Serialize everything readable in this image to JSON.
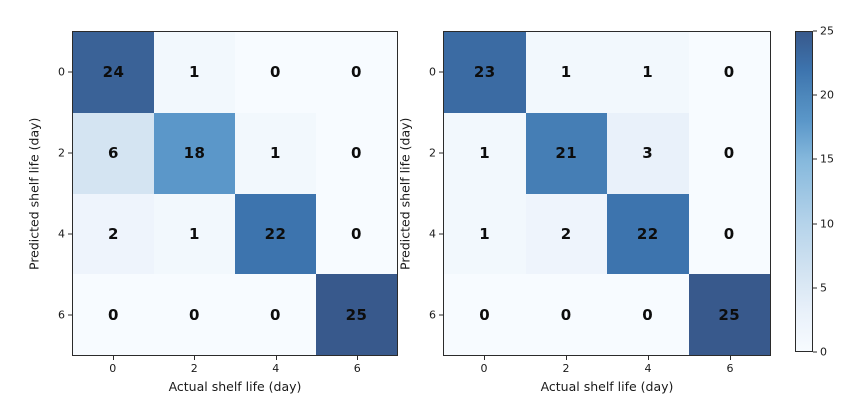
{
  "figure": {
    "background": "#ffffff",
    "spine_color": "#2b2b2b",
    "text_color": "#1a1a1a",
    "annotation_color": "#0d0d0d",
    "colormap": {
      "name": "Blues",
      "vmin": 0,
      "vmax": 25,
      "stops": [
        {
          "v": 0,
          "color": "#f7fbff"
        },
        {
          "v": 3,
          "color": "#e9f1fa"
        },
        {
          "v": 6,
          "color": "#d4e4f2"
        },
        {
          "v": 10,
          "color": "#b5d3ea"
        },
        {
          "v": 15,
          "color": "#85b8dc"
        },
        {
          "v": 18,
          "color": "#5b97c9"
        },
        {
          "v": 20,
          "color": "#4d87bb"
        },
        {
          "v": 22,
          "color": "#3d74ae"
        },
        {
          "v": 25,
          "color": "#38598c"
        }
      ]
    }
  },
  "chart_data": [
    {
      "type": "heatmap",
      "name": "confusion-matrix-left",
      "title": "",
      "xlabel": "Actual shelf life (day)",
      "ylabel": "Predicted shelf life (day)",
      "x_tick_labels": [
        "0",
        "2",
        "4",
        "6"
      ],
      "y_tick_labels": [
        "0",
        "2",
        "4",
        "6"
      ],
      "rows": [
        [
          24,
          1,
          0,
          0
        ],
        [
          6,
          18,
          1,
          0
        ],
        [
          2,
          1,
          22,
          0
        ],
        [
          0,
          0,
          0,
          25
        ]
      ],
      "vmin": 0,
      "vmax": 25,
      "grid": false,
      "annotations": "cell values shown in bold black"
    },
    {
      "type": "heatmap",
      "name": "confusion-matrix-right",
      "title": "",
      "xlabel": "Actual shelf life (day)",
      "ylabel": "Predicted shelf life (day)",
      "x_tick_labels": [
        "0",
        "2",
        "4",
        "6"
      ],
      "y_tick_labels": [
        "0",
        "2",
        "4",
        "6"
      ],
      "rows": [
        [
          23,
          1,
          1,
          0
        ],
        [
          1,
          21,
          3,
          0
        ],
        [
          1,
          2,
          22,
          0
        ],
        [
          0,
          0,
          0,
          25
        ]
      ],
      "vmin": 0,
      "vmax": 25,
      "grid": false,
      "annotations": "cell values shown in bold black"
    }
  ],
  "colorbar": {
    "min": 0,
    "max": 25,
    "tick_values": [
      0,
      5,
      10,
      15,
      20,
      25
    ],
    "tick_labels": [
      "0",
      "5",
      "10",
      "15",
      "20",
      "25"
    ],
    "position": "right"
  }
}
